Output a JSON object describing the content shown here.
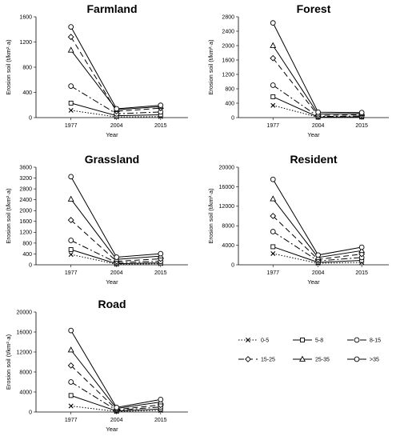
{
  "chart_data": {
    "type": "line",
    "x": [
      "1977",
      "2004",
      "2015"
    ],
    "legend": {
      "placement": "bottom-right",
      "entries": [
        "0-5",
        "5-8",
        "8-15",
        "15-25",
        "25-35",
        ">35"
      ]
    },
    "styles": [
      {
        "dash": "1.5,2",
        "marker": "x"
      },
      {
        "dash": "",
        "marker": "square"
      },
      {
        "dash": "8,3,2,3",
        "marker": "circle"
      },
      {
        "dash": "7,4",
        "marker": "diamond"
      },
      {
        "dash": "",
        "marker": "triangle"
      },
      {
        "dash": "",
        "marker": "circle"
      }
    ],
    "panels": [
      {
        "title": "Farmland",
        "xlabel": "Year",
        "ylabel": "Erosion soil (t/km²·a)",
        "ylim": [
          0,
          1600
        ],
        "yticks": [
          "0",
          "400",
          "800",
          "1200",
          "1600"
        ],
        "series": [
          {
            "values": [
              115,
              10,
              15
            ]
          },
          {
            "values": [
              230,
              30,
              45
            ]
          },
          {
            "values": [
              500,
              60,
              90
            ]
          },
          {
            "values": [
              1280,
              100,
              150
            ]
          },
          {
            "values": [
              1070,
              125,
              175
            ]
          },
          {
            "values": [
              1440,
              140,
              195
            ]
          }
        ]
      },
      {
        "title": "Forest",
        "xlabel": "Year",
        "ylabel": "Erosion soil (t/km²·a)",
        "ylim": [
          0,
          2800
        ],
        "yticks": [
          "0",
          "400",
          "800",
          "1200",
          "1600",
          "2000",
          "2400",
          "2800"
        ],
        "series": [
          {
            "values": [
              340,
              8,
              10
            ]
          },
          {
            "values": [
              580,
              15,
              20
            ]
          },
          {
            "values": [
              900,
              30,
              45
            ]
          },
          {
            "values": [
              1650,
              60,
              80
            ]
          },
          {
            "values": [
              2000,
              100,
              110
            ]
          },
          {
            "values": [
              2630,
              150,
              140
            ]
          }
        ]
      },
      {
        "title": "Grassland",
        "xlabel": "Year",
        "ylabel": "Erosion soil (t/km²·a)",
        "ylim": [
          0,
          3600
        ],
        "yticks": [
          "0",
          "400",
          "800",
          "1200",
          "1600",
          "2000",
          "2400",
          "2800",
          "3200",
          "3600"
        ],
        "series": [
          {
            "values": [
              380,
              20,
              40
            ]
          },
          {
            "values": [
              560,
              40,
              70
            ]
          },
          {
            "values": [
              900,
              80,
              130
            ]
          },
          {
            "values": [
              1650,
              130,
              220
            ]
          },
          {
            "values": [
              2420,
              200,
              320
            ]
          },
          {
            "values": [
              3250,
              280,
              410
            ]
          }
        ]
      },
      {
        "title": "Resident",
        "xlabel": "Year",
        "ylabel": "Erosion soil (t/km²·a)",
        "ylim": [
          0,
          20000
        ],
        "yticks": [
          "0",
          "4000",
          "8000",
          "12000",
          "16000",
          "20000"
        ],
        "series": [
          {
            "values": [
              2300,
              300,
              500
            ]
          },
          {
            "values": [
              3700,
              500,
              900
            ]
          },
          {
            "values": [
              6800,
              800,
              1500
            ]
          },
          {
            "values": [
              10000,
              1100,
              2200
            ]
          },
          {
            "values": [
              13500,
              1500,
              2900
            ]
          },
          {
            "values": [
              17500,
              2000,
              3600
            ]
          }
        ]
      },
      {
        "title": "Road",
        "xlabel": "Year",
        "ylabel": "Erosion soil (t/km²·a)",
        "ylim": [
          0,
          20000
        ],
        "yticks": [
          "0",
          "4000",
          "8000",
          "12000",
          "16000",
          "20000"
        ],
        "series": [
          {
            "values": [
              1200,
              100,
              300
            ]
          },
          {
            "values": [
              3300,
              200,
              600
            ]
          },
          {
            "values": [
              6000,
              350,
              1000
            ]
          },
          {
            "values": [
              9300,
              500,
              1400
            ]
          },
          {
            "values": [
              12400,
              700,
              2000
            ]
          },
          {
            "values": [
              16300,
              900,
              2500
            ]
          }
        ]
      }
    ]
  }
}
